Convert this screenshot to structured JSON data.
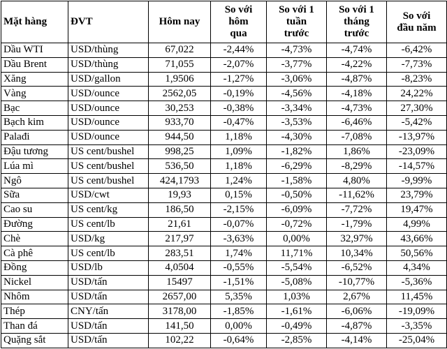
{
  "table": {
    "header": [
      [
        "Mặt hàng"
      ],
      [
        "ĐVT"
      ],
      [
        "Hôm nay"
      ],
      [
        "So với",
        "hôm",
        "qua"
      ],
      [
        "So với 1",
        "tuần",
        "trước"
      ],
      [
        "So với 1",
        "tháng",
        "trước"
      ],
      [
        "So với",
        "đầu năm"
      ]
    ],
    "rows": [
      [
        "Dầu WTI",
        "USD/thùng",
        "67,022",
        "-2,44%",
        "-4,73%",
        "-4,74%",
        "-6,42%"
      ],
      [
        "Dầu Brent",
        "USD/thùng",
        "71,055",
        "-2,07%",
        "-3,77%",
        "-4,22%",
        "-7,73%"
      ],
      [
        "Xăng",
        "USD/gallon",
        "1,9506",
        "-1,27%",
        "-3,06%",
        "-4,87%",
        "-8,23%"
      ],
      [
        "Vàng",
        "USD/ounce",
        "2562,05",
        "-0,19%",
        "-4,56%",
        "-4,18%",
        "24,22%"
      ],
      [
        "Bạc",
        "USD/ounce",
        "30,253",
        "-0,38%",
        "-3,34%",
        "-4,73%",
        "27,30%"
      ],
      [
        "Bạch kim",
        "USD/ounce",
        "933,70",
        "-0,47%",
        "-3,53%",
        "-6,46%",
        "-5,42%"
      ],
      [
        "Palađi",
        "USD/ounce",
        "944,50",
        "1,18%",
        "-4,30%",
        "-7,08%",
        "-13,97%"
      ],
      [
        "Đậu tương",
        "US cent/bushel",
        "998,25",
        "1,09%",
        "-1,82%",
        "1,86%",
        "-23,09%"
      ],
      [
        "Lúa mì",
        "US cent/bushel",
        "536,50",
        "1,18%",
        "-6,29%",
        "-8,29%",
        "-14,57%"
      ],
      [
        "Ngô",
        "US cent/bushel",
        "424,1793",
        "1,24%",
        "-1,58%",
        "4,80%",
        "-9,99%"
      ],
      [
        "Sữa",
        "USD/cwt",
        "19,93",
        "0,15%",
        "-0,50%",
        "-11,62%",
        "23,79%"
      ],
      [
        "Cao su",
        "US cent/kg",
        "186,50",
        "-2,15%",
        "-6,09%",
        "-7,72%",
        "19,47%"
      ],
      [
        "Đường",
        "US cent/lb",
        "21,61",
        "-0,07%",
        "-0,72%",
        "-1,79%",
        "4,99%"
      ],
      [
        "Chè",
        "USD/kg",
        "217,97",
        "-3,63%",
        "0,00%",
        "32,97%",
        "43,66%"
      ],
      [
        "Cà phê",
        "US cent/lb",
        "283,51",
        "1,74%",
        "11,71%",
        "10,34%",
        "50,56%"
      ],
      [
        "Đồng",
        "USD/lb",
        "4,0504",
        "-0,55%",
        "-5,54%",
        "-6,52%",
        "4,34%"
      ],
      [
        "Nickel",
        "USD/tấn",
        "15497",
        "-1,51%",
        "-5,08%",
        "-10,77%",
        "-5,36%"
      ],
      [
        "Nhôm",
        "USD/tấn",
        "2657,00",
        "5,35%",
        "1,03%",
        "2,67%",
        "11,45%"
      ],
      [
        "Thép",
        "CNY/tấn",
        "3178,00",
        "-1,85%",
        "-1,61%",
        "-6,06%",
        "-19,09%"
      ],
      [
        "Than đá",
        "USD/tấn",
        "141,50",
        "0,00%",
        "-0,49%",
        "-4,87%",
        "-3,35%"
      ],
      [
        "Quặng sắt",
        "USD/tấn",
        "102,22",
        "-0,64%",
        "-2,85%",
        "-4,14%",
        "-25,04%"
      ]
    ]
  }
}
